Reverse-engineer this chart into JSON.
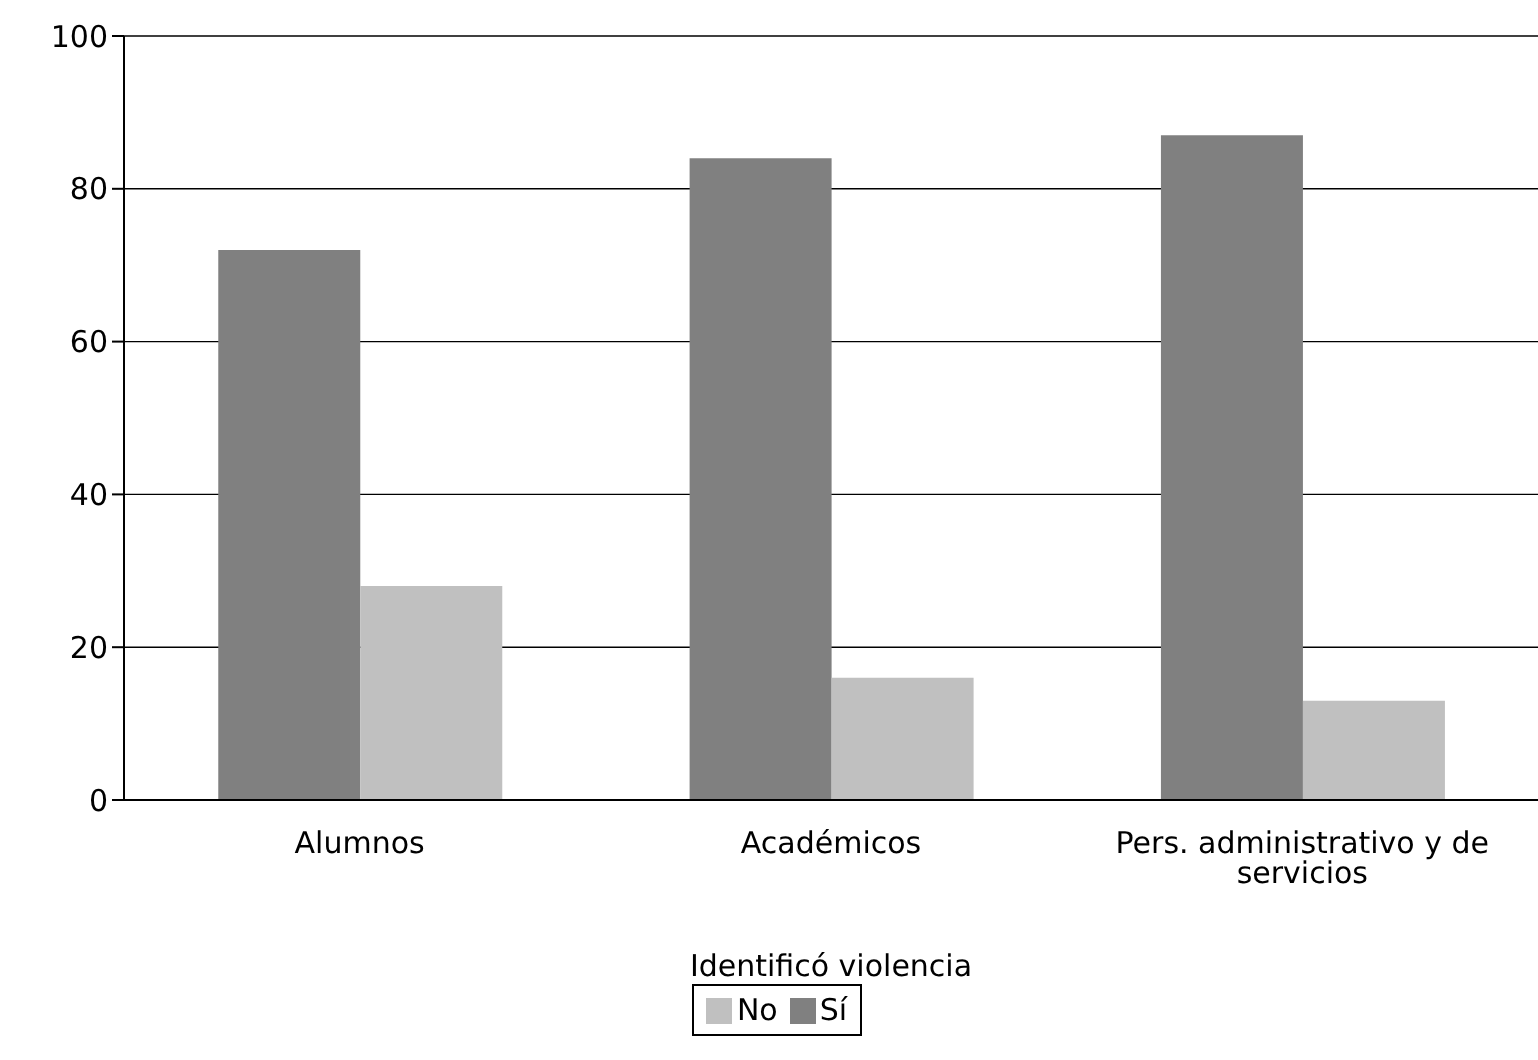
{
  "chart_data": {
    "type": "bar",
    "xlabel": "Identificó violencia",
    "categories": [
      "Alumnos",
      "Académicos",
      "Pers. administrativo y de servicios"
    ],
    "series": [
      {
        "name": "Sí",
        "color": "#808080",
        "values": [
          72,
          84,
          87
        ]
      },
      {
        "name": "No",
        "color": "#c0c0c0",
        "values": [
          28,
          16,
          13
        ]
      }
    ],
    "ylim": [
      0,
      100
    ],
    "yticks": [
      0,
      20,
      40,
      60,
      80,
      100
    ],
    "grid": "y",
    "legend": "bottom"
  }
}
